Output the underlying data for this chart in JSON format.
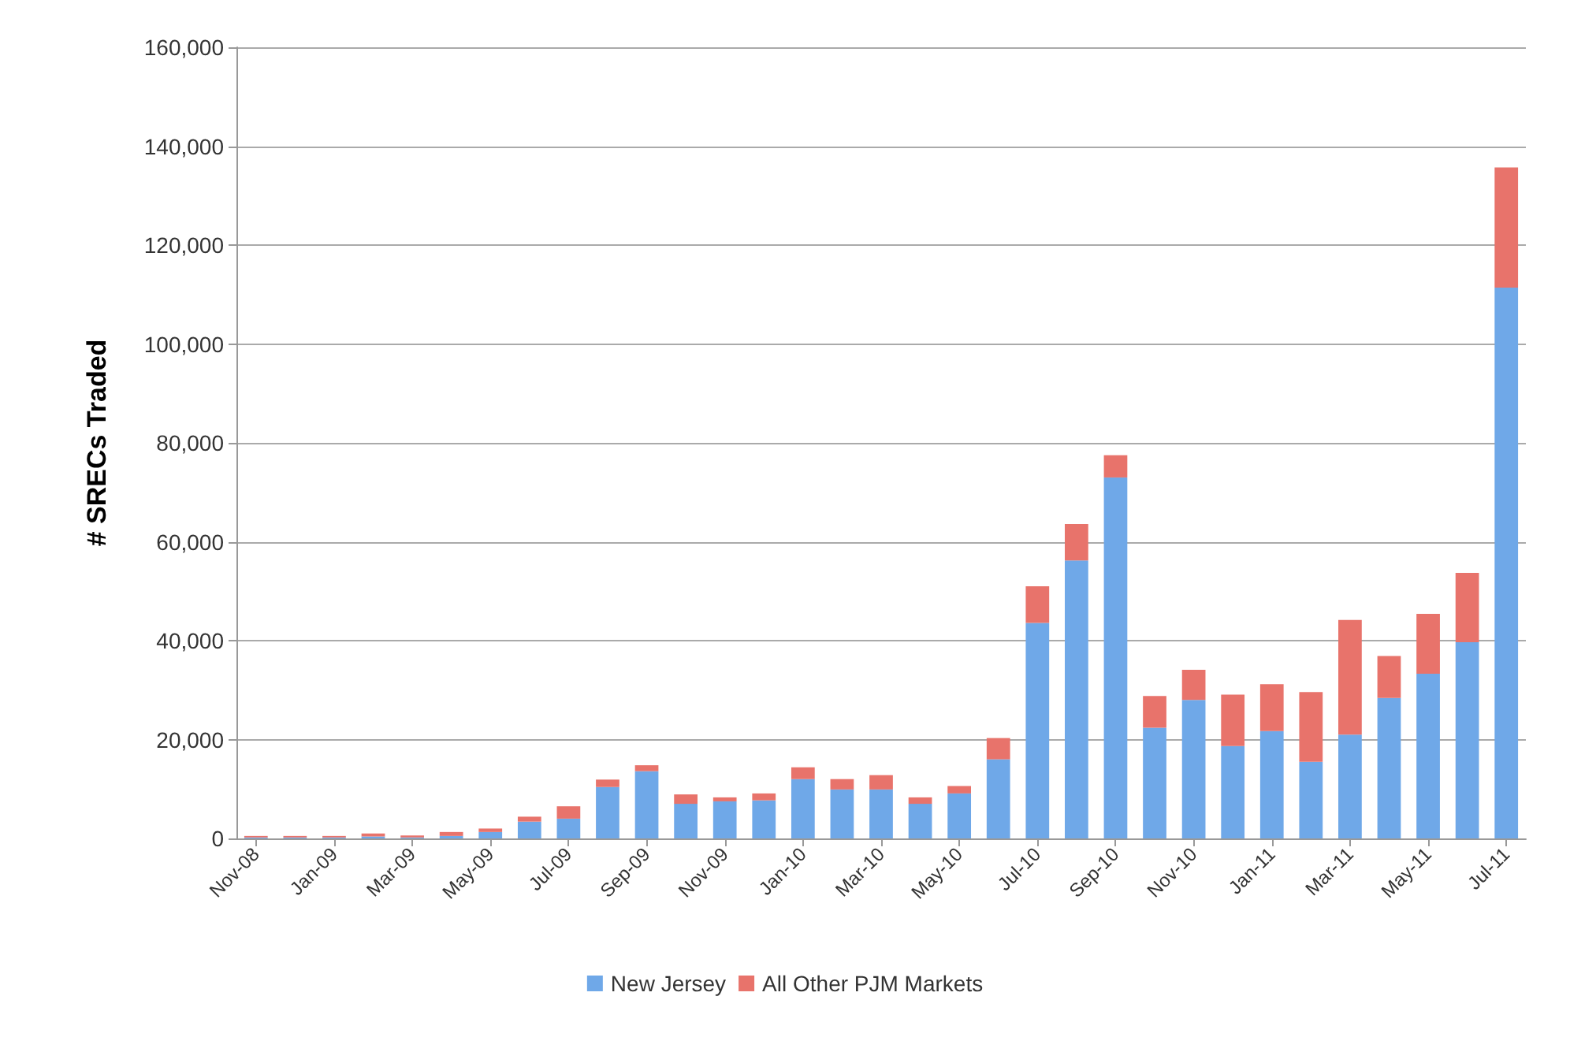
{
  "chart_data": {
    "type": "bar",
    "stacked": true,
    "ylabel": "# SRECs Traded",
    "categories": [
      "Nov-08",
      null,
      "Jan-09",
      null,
      "Mar-09",
      null,
      "May-09",
      null,
      "Jul-09",
      null,
      "Sep-09",
      null,
      "Nov-09",
      null,
      "Jan-10",
      null,
      "Mar-10",
      null,
      "May-10",
      null,
      "Jul-10",
      null,
      "Sep-10",
      null,
      "Nov-10",
      null,
      "Jan-11",
      null,
      "Mar-11",
      null,
      "May-11",
      null,
      "Jul-11"
    ],
    "series": [
      {
        "name": "New Jersey",
        "color": "#6fa8e8",
        "values": [
          200,
          200,
          200,
          400,
          200,
          500,
          1300,
          3400,
          4000,
          10400,
          13600,
          7000,
          7500,
          7700,
          12000,
          9900,
          9900,
          7000,
          9100,
          16000,
          43600,
          56200,
          73000,
          22400,
          28000,
          18700,
          21700,
          15500,
          21000,
          28400,
          33300,
          39700,
          111400
        ]
      },
      {
        "name": "All Other PJM Markets",
        "color": "#e8736b",
        "values": [
          300,
          300,
          300,
          600,
          400,
          800,
          700,
          1000,
          2500,
          1500,
          1200,
          1900,
          800,
          1400,
          2400,
          2100,
          2900,
          1300,
          1500,
          4300,
          7400,
          7400,
          4500,
          6400,
          6100,
          10400,
          9500,
          14100,
          23200,
          8500,
          12100,
          14000,
          24300
        ]
      }
    ],
    "ylim": [
      0,
      160000
    ],
    "yticks": [
      0,
      {
        "value": 20000,
        "label": "20,000"
      },
      {
        "value": 40000,
        "label": "40,000"
      },
      {
        "value": 60000,
        "label": "60,000"
      },
      {
        "value": 80000,
        "label": "80,000"
      },
      {
        "value": 100000,
        "label": "100,000"
      },
      {
        "value": 120000,
        "label": "120,000"
      },
      {
        "value": 140000,
        "label": "140,000"
      },
      {
        "value": 160000,
        "label": "160,000"
      }
    ],
    "grid": "y",
    "legend": "bottom"
  }
}
